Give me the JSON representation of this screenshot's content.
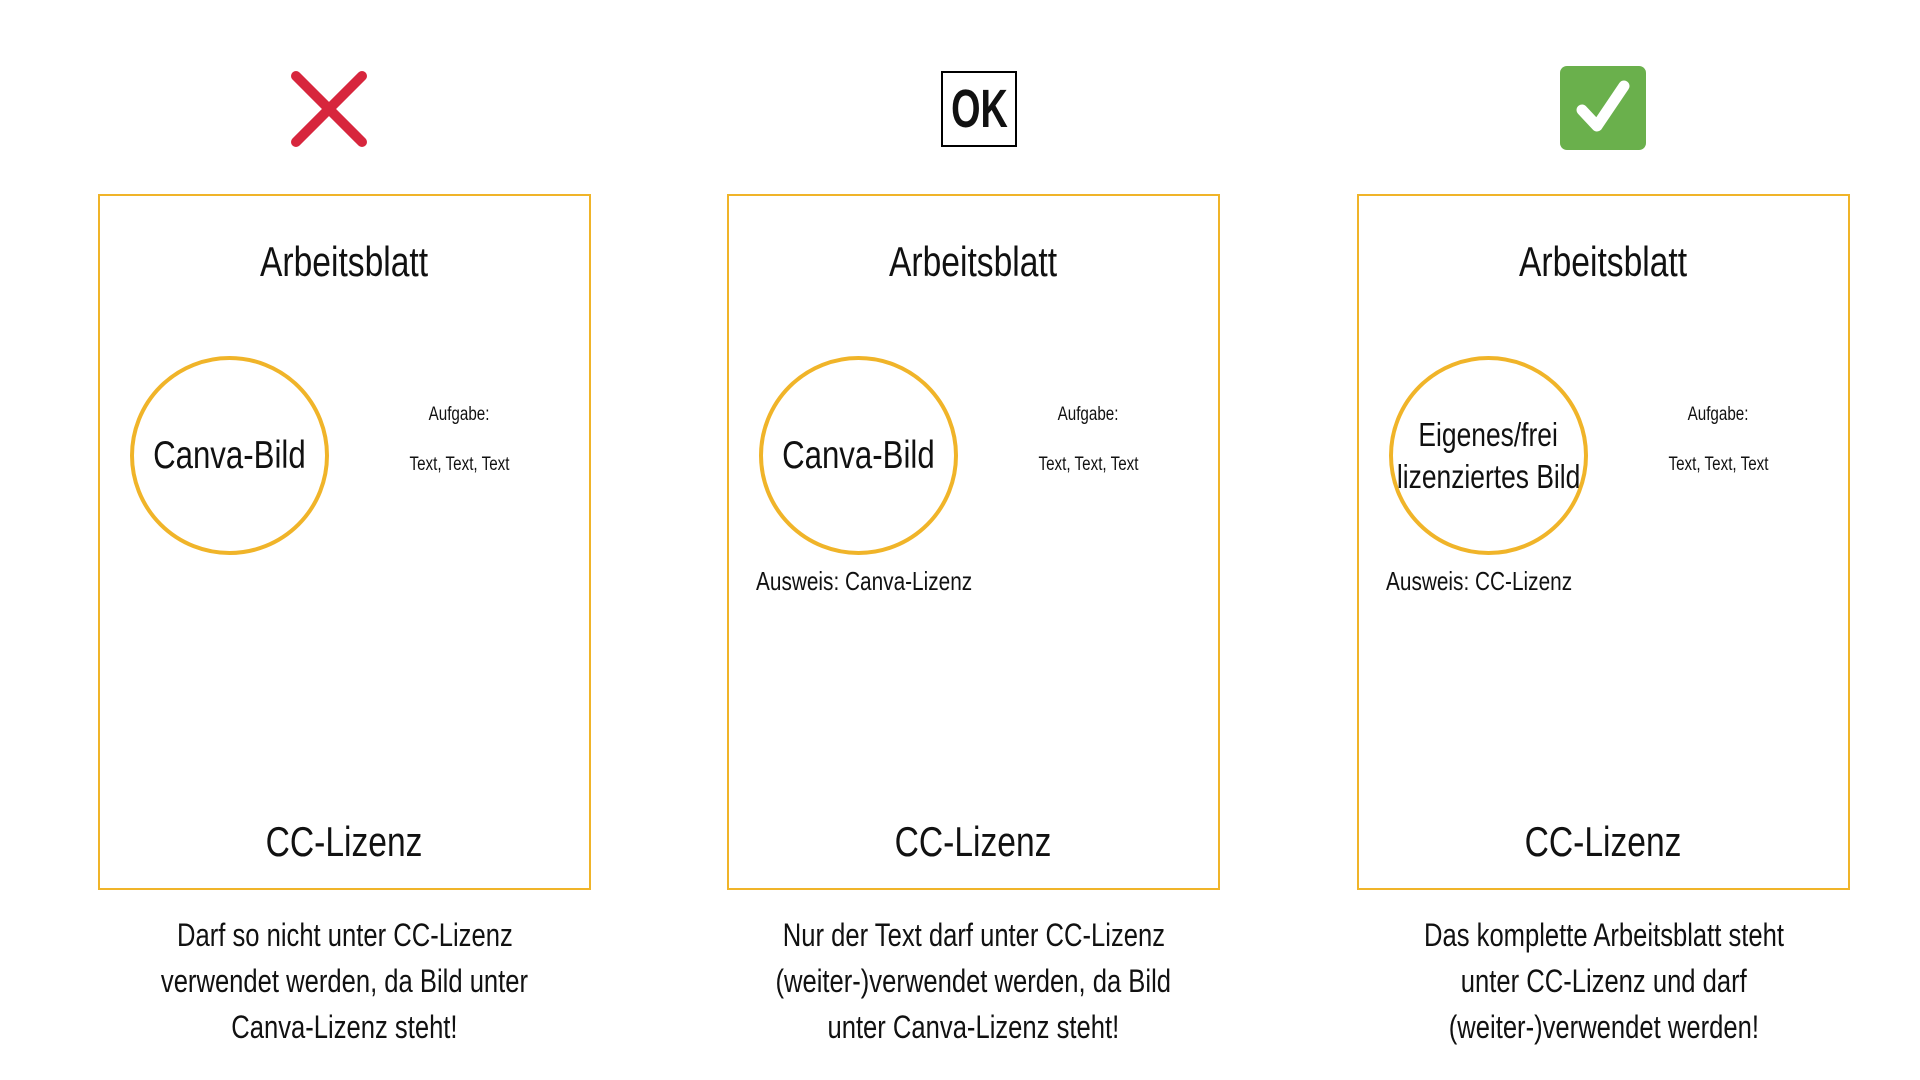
{
  "columns": [
    {
      "status_icon": "cross-icon",
      "worksheet_title": "Arbeitsblatt",
      "image_label": [
        "Canva-Bild"
      ],
      "task_label": "Aufgabe:",
      "task_text": "Text, Text, Text",
      "attribution": "",
      "license": "CC-Lizenz",
      "caption": [
        "Darf so nicht unter CC-Lizenz",
        "verwendet werden, da Bild unter",
        "Canva-Lizenz steht!"
      ]
    },
    {
      "status_icon": "ok-icon",
      "status_text": "OK",
      "worksheet_title": "Arbeitsblatt",
      "image_label": [
        "Canva-Bild"
      ],
      "task_label": "Aufgabe:",
      "task_text": "Text, Text, Text",
      "attribution": "Ausweis: Canva-Lizenz",
      "license": "CC-Lizenz",
      "caption": [
        "Nur der Text darf unter CC-Lizenz",
        "(weiter-)verwendet werden, da Bild",
        "unter Canva-Lizenz steht!"
      ]
    },
    {
      "status_icon": "checkmark-icon",
      "worksheet_title": "Arbeitsblatt",
      "image_label": [
        "Eigenes/frei",
        "lizenziertes Bild"
      ],
      "task_label": "Aufgabe:",
      "task_text": "Text, Text, Text",
      "attribution": "Ausweis: CC-Lizenz",
      "license": "CC-Lizenz",
      "caption": [
        "Das komplette Arbeitsblatt steht",
        "unter CC-Lizenz und darf",
        "(weiter-)verwendet werden!"
      ]
    }
  ],
  "colors": {
    "frame": "#f0b429",
    "cross": "#d7263d",
    "check_bg": "#6ab04c"
  }
}
